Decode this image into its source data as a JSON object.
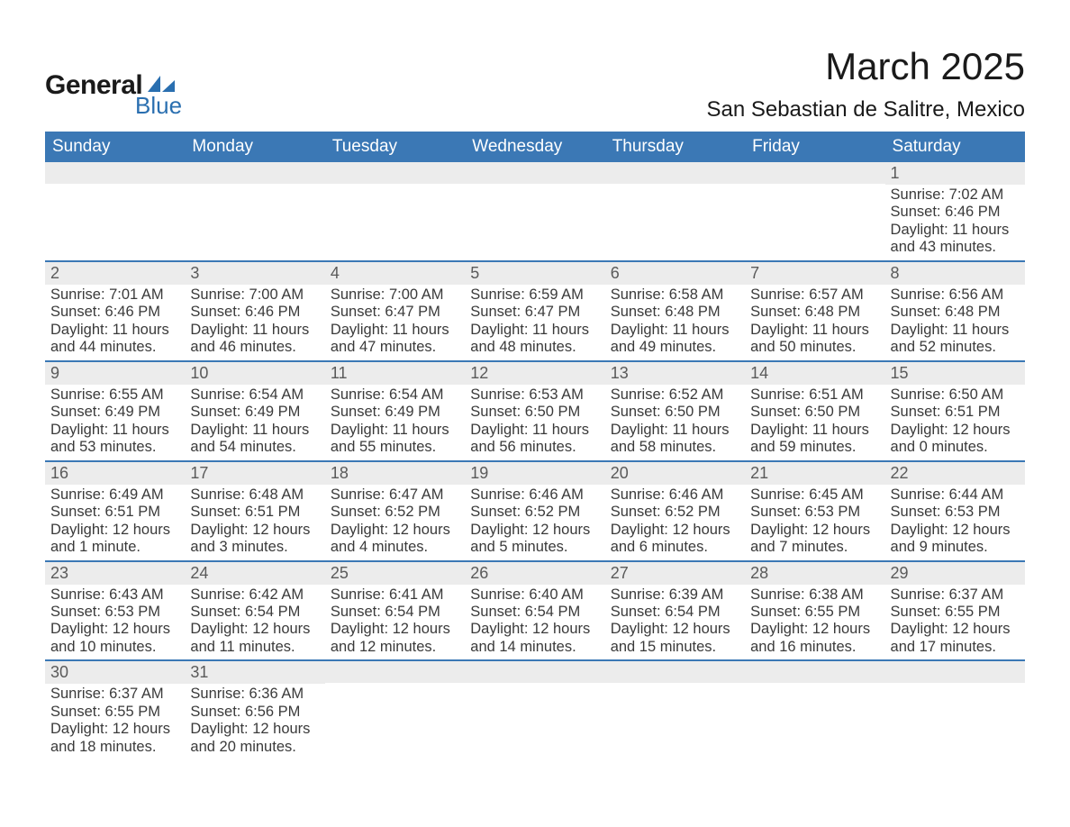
{
  "logo": {
    "text1": "General",
    "text2": "Blue",
    "swoosh_color": "#2a6fb0"
  },
  "title": {
    "month": "March 2025",
    "location": "San Sebastian de Salitre, Mexico"
  },
  "colors": {
    "header_bg": "#3b78b5",
    "header_text": "#ffffff",
    "row_divider": "#3b78b5",
    "daynum_bg": "#ececec",
    "daynum_text": "#5a5a5a",
    "body_text": "#3a3a3a",
    "page_bg": "#ffffff"
  },
  "typography": {
    "title_fontsize": 42,
    "location_fontsize": 24,
    "header_fontsize": 19,
    "daynum_fontsize": 18,
    "cell_fontsize": 16.5,
    "font_family": "Arial"
  },
  "day_headers": [
    "Sunday",
    "Monday",
    "Tuesday",
    "Wednesday",
    "Thursday",
    "Friday",
    "Saturday"
  ],
  "weeks": [
    [
      {
        "n": "",
        "sunrise": "",
        "sunset": "",
        "day1": "",
        "day2": ""
      },
      {
        "n": "",
        "sunrise": "",
        "sunset": "",
        "day1": "",
        "day2": ""
      },
      {
        "n": "",
        "sunrise": "",
        "sunset": "",
        "day1": "",
        "day2": ""
      },
      {
        "n": "",
        "sunrise": "",
        "sunset": "",
        "day1": "",
        "day2": ""
      },
      {
        "n": "",
        "sunrise": "",
        "sunset": "",
        "day1": "",
        "day2": ""
      },
      {
        "n": "",
        "sunrise": "",
        "sunset": "",
        "day1": "",
        "day2": ""
      },
      {
        "n": "1",
        "sunrise": "Sunrise: 7:02 AM",
        "sunset": "Sunset: 6:46 PM",
        "day1": "Daylight: 11 hours",
        "day2": "and 43 minutes."
      }
    ],
    [
      {
        "n": "2",
        "sunrise": "Sunrise: 7:01 AM",
        "sunset": "Sunset: 6:46 PM",
        "day1": "Daylight: 11 hours",
        "day2": "and 44 minutes."
      },
      {
        "n": "3",
        "sunrise": "Sunrise: 7:00 AM",
        "sunset": "Sunset: 6:46 PM",
        "day1": "Daylight: 11 hours",
        "day2": "and 46 minutes."
      },
      {
        "n": "4",
        "sunrise": "Sunrise: 7:00 AM",
        "sunset": "Sunset: 6:47 PM",
        "day1": "Daylight: 11 hours",
        "day2": "and 47 minutes."
      },
      {
        "n": "5",
        "sunrise": "Sunrise: 6:59 AM",
        "sunset": "Sunset: 6:47 PM",
        "day1": "Daylight: 11 hours",
        "day2": "and 48 minutes."
      },
      {
        "n": "6",
        "sunrise": "Sunrise: 6:58 AM",
        "sunset": "Sunset: 6:48 PM",
        "day1": "Daylight: 11 hours",
        "day2": "and 49 minutes."
      },
      {
        "n": "7",
        "sunrise": "Sunrise: 6:57 AM",
        "sunset": "Sunset: 6:48 PM",
        "day1": "Daylight: 11 hours",
        "day2": "and 50 minutes."
      },
      {
        "n": "8",
        "sunrise": "Sunrise: 6:56 AM",
        "sunset": "Sunset: 6:48 PM",
        "day1": "Daylight: 11 hours",
        "day2": "and 52 minutes."
      }
    ],
    [
      {
        "n": "9",
        "sunrise": "Sunrise: 6:55 AM",
        "sunset": "Sunset: 6:49 PM",
        "day1": "Daylight: 11 hours",
        "day2": "and 53 minutes."
      },
      {
        "n": "10",
        "sunrise": "Sunrise: 6:54 AM",
        "sunset": "Sunset: 6:49 PM",
        "day1": "Daylight: 11 hours",
        "day2": "and 54 minutes."
      },
      {
        "n": "11",
        "sunrise": "Sunrise: 6:54 AM",
        "sunset": "Sunset: 6:49 PM",
        "day1": "Daylight: 11 hours",
        "day2": "and 55 minutes."
      },
      {
        "n": "12",
        "sunrise": "Sunrise: 6:53 AM",
        "sunset": "Sunset: 6:50 PM",
        "day1": "Daylight: 11 hours",
        "day2": "and 56 minutes."
      },
      {
        "n": "13",
        "sunrise": "Sunrise: 6:52 AM",
        "sunset": "Sunset: 6:50 PM",
        "day1": "Daylight: 11 hours",
        "day2": "and 58 minutes."
      },
      {
        "n": "14",
        "sunrise": "Sunrise: 6:51 AM",
        "sunset": "Sunset: 6:50 PM",
        "day1": "Daylight: 11 hours",
        "day2": "and 59 minutes."
      },
      {
        "n": "15",
        "sunrise": "Sunrise: 6:50 AM",
        "sunset": "Sunset: 6:51 PM",
        "day1": "Daylight: 12 hours",
        "day2": "and 0 minutes."
      }
    ],
    [
      {
        "n": "16",
        "sunrise": "Sunrise: 6:49 AM",
        "sunset": "Sunset: 6:51 PM",
        "day1": "Daylight: 12 hours",
        "day2": "and 1 minute."
      },
      {
        "n": "17",
        "sunrise": "Sunrise: 6:48 AM",
        "sunset": "Sunset: 6:51 PM",
        "day1": "Daylight: 12 hours",
        "day2": "and 3 minutes."
      },
      {
        "n": "18",
        "sunrise": "Sunrise: 6:47 AM",
        "sunset": "Sunset: 6:52 PM",
        "day1": "Daylight: 12 hours",
        "day2": "and 4 minutes."
      },
      {
        "n": "19",
        "sunrise": "Sunrise: 6:46 AM",
        "sunset": "Sunset: 6:52 PM",
        "day1": "Daylight: 12 hours",
        "day2": "and 5 minutes."
      },
      {
        "n": "20",
        "sunrise": "Sunrise: 6:46 AM",
        "sunset": "Sunset: 6:52 PM",
        "day1": "Daylight: 12 hours",
        "day2": "and 6 minutes."
      },
      {
        "n": "21",
        "sunrise": "Sunrise: 6:45 AM",
        "sunset": "Sunset: 6:53 PM",
        "day1": "Daylight: 12 hours",
        "day2": "and 7 minutes."
      },
      {
        "n": "22",
        "sunrise": "Sunrise: 6:44 AM",
        "sunset": "Sunset: 6:53 PM",
        "day1": "Daylight: 12 hours",
        "day2": "and 9 minutes."
      }
    ],
    [
      {
        "n": "23",
        "sunrise": "Sunrise: 6:43 AM",
        "sunset": "Sunset: 6:53 PM",
        "day1": "Daylight: 12 hours",
        "day2": "and 10 minutes."
      },
      {
        "n": "24",
        "sunrise": "Sunrise: 6:42 AM",
        "sunset": "Sunset: 6:54 PM",
        "day1": "Daylight: 12 hours",
        "day2": "and 11 minutes."
      },
      {
        "n": "25",
        "sunrise": "Sunrise: 6:41 AM",
        "sunset": "Sunset: 6:54 PM",
        "day1": "Daylight: 12 hours",
        "day2": "and 12 minutes."
      },
      {
        "n": "26",
        "sunrise": "Sunrise: 6:40 AM",
        "sunset": "Sunset: 6:54 PM",
        "day1": "Daylight: 12 hours",
        "day2": "and 14 minutes."
      },
      {
        "n": "27",
        "sunrise": "Sunrise: 6:39 AM",
        "sunset": "Sunset: 6:54 PM",
        "day1": "Daylight: 12 hours",
        "day2": "and 15 minutes."
      },
      {
        "n": "28",
        "sunrise": "Sunrise: 6:38 AM",
        "sunset": "Sunset: 6:55 PM",
        "day1": "Daylight: 12 hours",
        "day2": "and 16 minutes."
      },
      {
        "n": "29",
        "sunrise": "Sunrise: 6:37 AM",
        "sunset": "Sunset: 6:55 PM",
        "day1": "Daylight: 12 hours",
        "day2": "and 17 minutes."
      }
    ],
    [
      {
        "n": "30",
        "sunrise": "Sunrise: 6:37 AM",
        "sunset": "Sunset: 6:55 PM",
        "day1": "Daylight: 12 hours",
        "day2": "and 18 minutes."
      },
      {
        "n": "31",
        "sunrise": "Sunrise: 6:36 AM",
        "sunset": "Sunset: 6:56 PM",
        "day1": "Daylight: 12 hours",
        "day2": "and 20 minutes."
      },
      {
        "n": "",
        "sunrise": "",
        "sunset": "",
        "day1": "",
        "day2": ""
      },
      {
        "n": "",
        "sunrise": "",
        "sunset": "",
        "day1": "",
        "day2": ""
      },
      {
        "n": "",
        "sunrise": "",
        "sunset": "",
        "day1": "",
        "day2": ""
      },
      {
        "n": "",
        "sunrise": "",
        "sunset": "",
        "day1": "",
        "day2": ""
      },
      {
        "n": "",
        "sunrise": "",
        "sunset": "",
        "day1": "",
        "day2": ""
      }
    ]
  ]
}
